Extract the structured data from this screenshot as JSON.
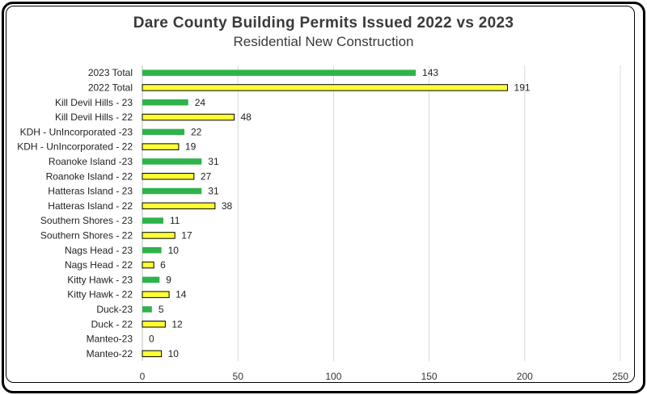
{
  "chart_data": {
    "type": "bar",
    "orientation": "horizontal",
    "title": "Dare County Building Permits Issued 2022 vs 2023",
    "subtitle": "Residential New Construction",
    "xlim": [
      0,
      250
    ],
    "xticks": [
      0,
      50,
      100,
      150,
      200,
      250
    ],
    "grid": true,
    "colors": {
      "2023": "#2db34a",
      "2022": "#ffff33",
      "outline_2022": "#000000",
      "grid": "#d9d9d9"
    },
    "categories": [
      "2023 Total",
      "2022 Total",
      "Kill Devil Hills - 23",
      "Kill Devil Hills - 22",
      "KDH - UnIncorporated -23",
      "KDH - UnIncorporated - 22",
      "Roanoke Island -23",
      "Roanoke Island - 22",
      "Hatteras Island - 23",
      "Hatteras Island - 22",
      "Southern Shores - 23",
      "Southern Shores - 22",
      "Nags Head - 23",
      "Nags Head - 22",
      "Kitty Hawk - 23",
      "Kitty Hawk - 22",
      "Duck-23",
      "Duck - 22",
      "Manteo-23",
      "Manteo-22"
    ],
    "values": [
      143,
      191,
      24,
      48,
      22,
      19,
      31,
      27,
      31,
      38,
      11,
      17,
      10,
      6,
      9,
      14,
      5,
      12,
      0,
      10
    ],
    "years": [
      "2023",
      "2022",
      "2023",
      "2022",
      "2023",
      "2022",
      "2023",
      "2022",
      "2023",
      "2022",
      "2023",
      "2022",
      "2023",
      "2022",
      "2023",
      "2022",
      "2023",
      "2022",
      "2023",
      "2022"
    ]
  }
}
